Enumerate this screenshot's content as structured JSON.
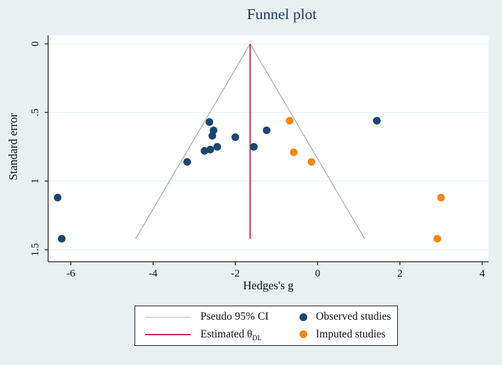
{
  "title": "Funnel plot",
  "colors": {
    "background": "#e9f0f2",
    "plot_background": "#ffffff",
    "gridline": "#e3ecef",
    "axis": "#1a1a1a",
    "title_text": "#1f3864",
    "funnel_ci_line": "#b4b4b4",
    "theta_line": "#c23556",
    "observed": "#1a476f",
    "imputed": "#ef8a14"
  },
  "chart_data": {
    "type": "scatter",
    "title": "Funnel plot",
    "xlabel": "Hedges's g",
    "ylabel": "Standard error",
    "x_ticks": [
      -6,
      -4,
      -2,
      0,
      2,
      4
    ],
    "x_tick_labels": [
      "-6",
      "-4",
      "-2",
      "0",
      "2",
      "4"
    ],
    "y_ticks": [
      0,
      0.5,
      1,
      1.5
    ],
    "y_tick_labels": [
      "0",
      ".5",
      "1",
      "1.5"
    ],
    "xlim": [
      -6.55,
      4.15
    ],
    "ylim_se": [
      0,
      1.59
    ],
    "y_axis_inverted": true,
    "grid": true,
    "legend_position": "bottom",
    "estimated_theta": -1.64,
    "funnel_max_se": 1.42,
    "ci_multiplier": 1.96,
    "series": [
      {
        "name": "Observed studies",
        "color": "#1a476f",
        "points": [
          {
            "g": -6.32,
            "se": 1.12
          },
          {
            "g": -6.22,
            "se": 1.42
          },
          {
            "g": -3.17,
            "se": 0.86
          },
          {
            "g": -2.75,
            "se": 0.78
          },
          {
            "g": -2.63,
            "se": 0.57
          },
          {
            "g": -2.61,
            "se": 0.77
          },
          {
            "g": -2.56,
            "se": 0.67
          },
          {
            "g": -2.53,
            "se": 0.63
          },
          {
            "g": -2.44,
            "se": 0.75
          },
          {
            "g": -2.0,
            "se": 0.68
          },
          {
            "g": -1.55,
            "se": 0.75
          },
          {
            "g": -1.24,
            "se": 0.63
          },
          {
            "g": 1.44,
            "se": 0.56
          }
        ]
      },
      {
        "name": "Imputed studies",
        "color": "#ef8a14",
        "points": [
          {
            "g": -0.68,
            "se": 0.56
          },
          {
            "g": -0.58,
            "se": 0.79
          },
          {
            "g": -0.15,
            "se": 0.86
          },
          {
            "g": 3.0,
            "se": 1.12
          },
          {
            "g": 2.91,
            "se": 1.42
          }
        ]
      }
    ]
  },
  "legend": {
    "items": [
      {
        "label": "Pseudo 95% CI",
        "swatch": "line",
        "color": "#b9b9b9"
      },
      {
        "label": "Observed studies",
        "swatch": "dot",
        "color": "#1a476f"
      },
      {
        "label_main": "Estimated θ",
        "label_sub": "DL",
        "label": "Estimated θDL",
        "swatch": "line",
        "color": "#c23556"
      },
      {
        "label": "Imputed studies",
        "swatch": "dot",
        "color": "#ef8a14"
      }
    ]
  }
}
